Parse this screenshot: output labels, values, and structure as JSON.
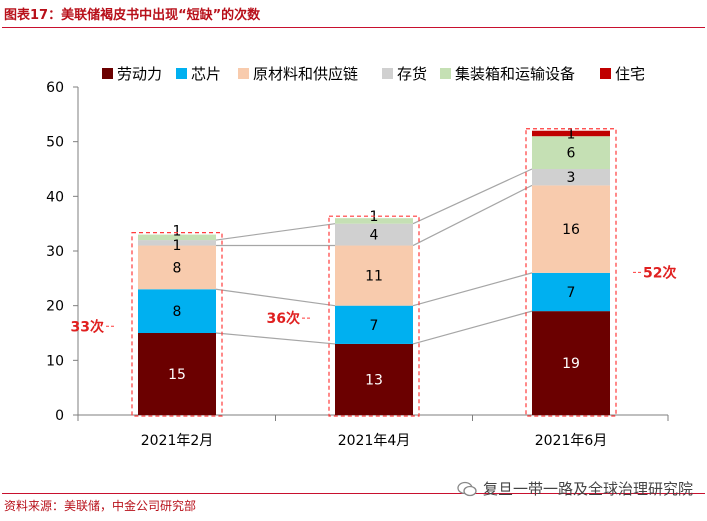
{
  "header": {
    "title": "图表17：美联储褐皮书中出现“短缺”的次数"
  },
  "footer": {
    "source": "资料来源：美联储，中金公司研究部",
    "watermark": "复旦一带一路及全球治理研究院"
  },
  "chart_data": {
    "type": "bar",
    "stacked": true,
    "categories": [
      "2021年2月",
      "2021年4月",
      "2021年6月"
    ],
    "series": [
      {
        "name": "劳动力",
        "color": "#6b0000",
        "values": [
          15,
          13,
          19
        ]
      },
      {
        "name": "芯片",
        "color": "#00b0f0",
        "values": [
          8,
          7,
          7
        ]
      },
      {
        "name": "原材料和供应链",
        "color": "#f8cbad",
        "values": [
          8,
          11,
          16
        ]
      },
      {
        "name": "存货",
        "color": "#d0d0d0",
        "values": [
          1,
          4,
          3
        ]
      },
      {
        "name": "集装箱和运输设备",
        "color": "#c5e0b4",
        "values": [
          1,
          1,
          6
        ]
      },
      {
        "name": "住宅",
        "color": "#c00000",
        "values": [
          0,
          0,
          1
        ]
      }
    ],
    "totals": [
      33,
      36,
      52
    ],
    "total_labels": [
      "33次",
      "36次",
      "52次"
    ],
    "ylim": [
      0,
      60
    ],
    "yticks": [
      0,
      10,
      20,
      30,
      40,
      50,
      60
    ],
    "legend_position": "top",
    "xlabel": "",
    "ylabel": ""
  }
}
